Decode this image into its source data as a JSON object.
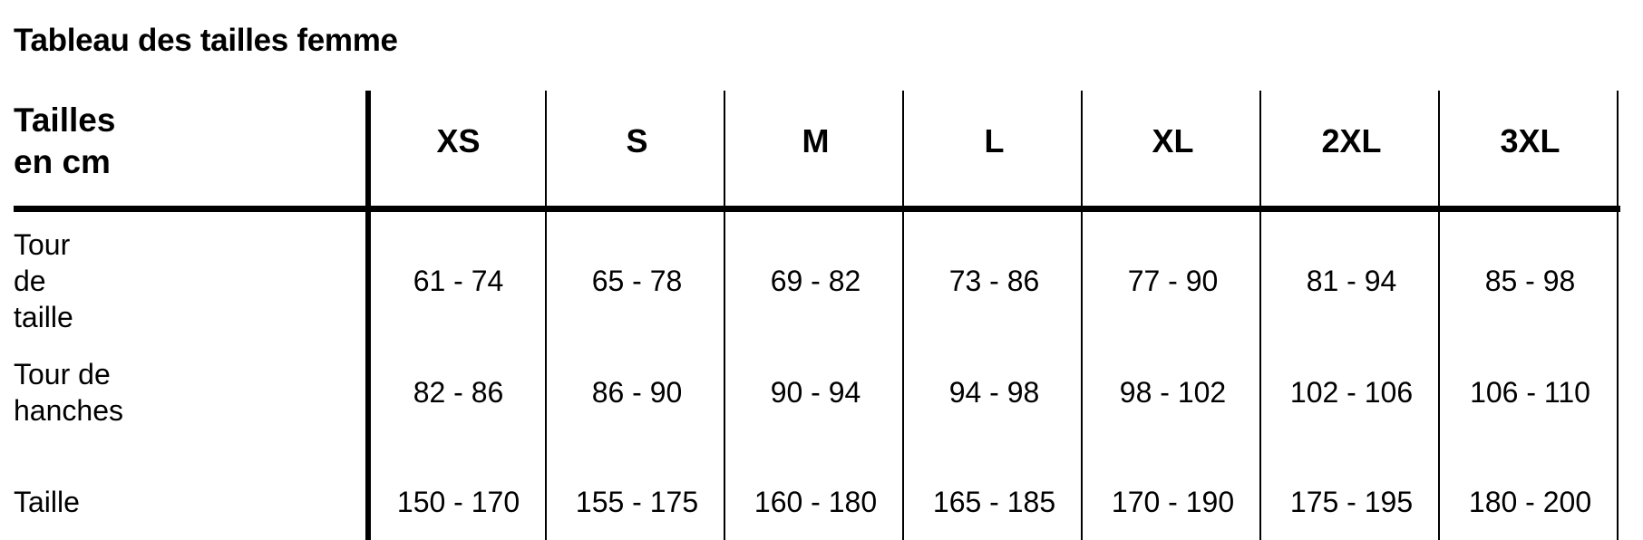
{
  "title": "Tableau des tailles femme",
  "table": {
    "corner_label": "Tailles en cm",
    "columns": [
      "XS",
      "S",
      "M",
      "L",
      "XL",
      "2XL",
      "3XL"
    ],
    "rows": [
      {
        "label": "Tour de taille",
        "values": [
          "61 - 74",
          "65 - 78",
          "69 - 82",
          "73 - 86",
          "77 - 90",
          "81 - 94",
          "85 - 98"
        ]
      },
      {
        "label": "Tour de hanches",
        "values": [
          "82 - 86",
          "86 - 90",
          "90 - 94",
          "94 - 98",
          "98 - 102",
          "102 - 106",
          "106 - 110"
        ]
      },
      {
        "label": "Taille",
        "values": [
          "150 - 170",
          "155 - 175",
          "160 - 180",
          "165 - 185",
          "170 - 190",
          "175 - 195",
          "180 - 200"
        ]
      }
    ]
  }
}
